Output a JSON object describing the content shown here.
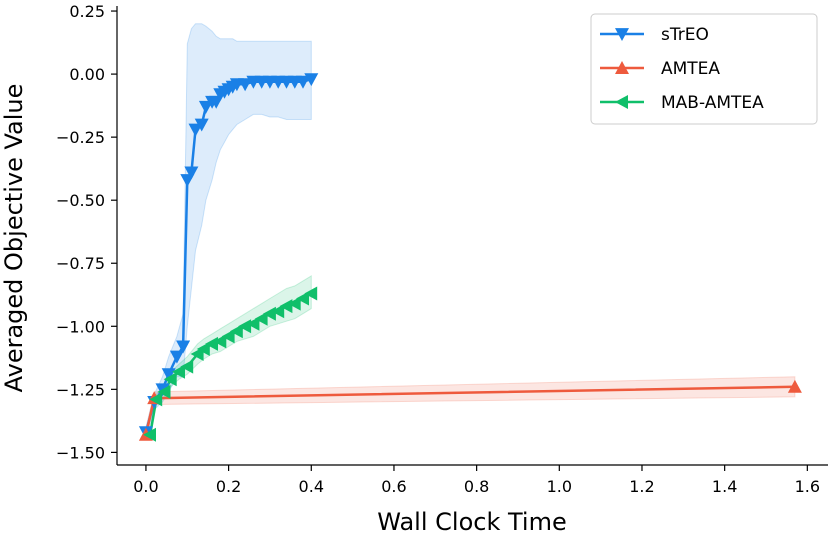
{
  "chart_data": {
    "type": "line",
    "title": "",
    "xlabel": "Wall Clock Time",
    "ylabel": "Averaged Objective Value",
    "xlim": [
      -0.07,
      1.65
    ],
    "ylim": [
      -1.55,
      0.27
    ],
    "xticks": [
      0.0,
      0.2,
      0.4,
      0.6,
      0.8,
      1.0,
      1.2,
      1.4,
      1.6
    ],
    "xtick_labels": [
      "0.0",
      "0.2",
      "0.4",
      "0.6",
      "0.8",
      "1.0",
      "1.2",
      "1.4",
      "1.6"
    ],
    "yticks": [
      0.25,
      0.0,
      -0.25,
      -0.5,
      -0.75,
      -1.0,
      -1.25,
      -1.5
    ],
    "ytick_labels": [
      "0.25",
      "0.00",
      "−0.25",
      "−0.50",
      "−0.75",
      "−1.00",
      "−1.25",
      "−1.50"
    ],
    "grid": false,
    "legend_position": "top-right",
    "series": [
      {
        "name": "sTrEO",
        "color": "#1a80e6",
        "marker": "triangle-down",
        "x": [
          0.0,
          0.02,
          0.04,
          0.055,
          0.075,
          0.09,
          0.1,
          0.11,
          0.12,
          0.135,
          0.145,
          0.16,
          0.17,
          0.18,
          0.19,
          0.2,
          0.21,
          0.22,
          0.24,
          0.26,
          0.28,
          0.3,
          0.32,
          0.34,
          0.36,
          0.38,
          0.4
        ],
        "y": [
          -1.42,
          -1.3,
          -1.25,
          -1.19,
          -1.12,
          -1.08,
          -0.42,
          -0.39,
          -0.22,
          -0.2,
          -0.13,
          -0.11,
          -0.11,
          -0.08,
          -0.07,
          -0.06,
          -0.05,
          -0.04,
          -0.04,
          -0.03,
          -0.03,
          -0.03,
          -0.03,
          -0.03,
          -0.03,
          -0.03,
          -0.02
        ],
        "band_upper": [
          -1.4,
          -1.27,
          -1.2,
          -1.12,
          -1.04,
          -0.95,
          0.12,
          0.18,
          0.2,
          0.2,
          0.19,
          0.17,
          0.15,
          0.14,
          0.14,
          0.14,
          0.14,
          0.13,
          0.13,
          0.13,
          0.13,
          0.13,
          0.13,
          0.13,
          0.13,
          0.13,
          0.13
        ],
        "band_lower": [
          -1.44,
          -1.33,
          -1.3,
          -1.26,
          -1.2,
          -1.2,
          -1.0,
          -0.85,
          -0.7,
          -0.6,
          -0.5,
          -0.42,
          -0.35,
          -0.3,
          -0.27,
          -0.24,
          -0.22,
          -0.2,
          -0.18,
          -0.16,
          -0.16,
          -0.17,
          -0.17,
          -0.18,
          -0.18,
          -0.18,
          -0.18
        ]
      },
      {
        "name": "AMTEA",
        "color": "#ee5a3d",
        "marker": "triangle-up",
        "x": [
          0.0,
          0.02,
          1.57
        ],
        "y": [
          -1.43,
          -1.285,
          -1.24
        ],
        "band_upper": [
          -1.41,
          -1.26,
          -1.2
        ],
        "band_lower": [
          -1.45,
          -1.31,
          -1.28
        ]
      },
      {
        "name": "MAB-AMTEA",
        "color": "#10bf6a",
        "marker": "triangle-left",
        "x": [
          0.01,
          0.025,
          0.045,
          0.06,
          0.08,
          0.1,
          0.125,
          0.14,
          0.16,
          0.18,
          0.2,
          0.22,
          0.24,
          0.26,
          0.28,
          0.3,
          0.32,
          0.34,
          0.36,
          0.38,
          0.4
        ],
        "y": [
          -1.43,
          -1.29,
          -1.26,
          -1.21,
          -1.18,
          -1.16,
          -1.11,
          -1.09,
          -1.07,
          -1.06,
          -1.04,
          -1.02,
          -1.0,
          -0.99,
          -0.97,
          -0.95,
          -0.94,
          -0.92,
          -0.91,
          -0.89,
          -0.87
        ],
        "band_upper": [
          -1.41,
          -1.27,
          -1.23,
          -1.18,
          -1.15,
          -1.12,
          -1.07,
          -1.05,
          -1.03,
          -1.01,
          -0.99,
          -0.97,
          -0.95,
          -0.93,
          -0.91,
          -0.89,
          -0.87,
          -0.85,
          -0.84,
          -0.82,
          -0.8
        ],
        "band_lower": [
          -1.45,
          -1.31,
          -1.28,
          -1.24,
          -1.21,
          -1.19,
          -1.15,
          -1.13,
          -1.11,
          -1.1,
          -1.08,
          -1.06,
          -1.05,
          -1.04,
          -1.02,
          -1.0,
          -0.99,
          -0.98,
          -0.97,
          -0.95,
          -0.93
        ]
      }
    ]
  }
}
